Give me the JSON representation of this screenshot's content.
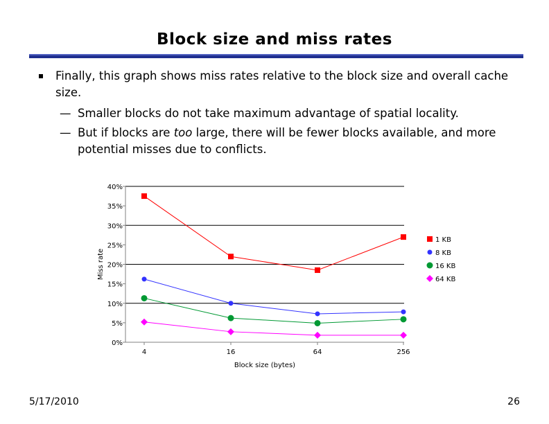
{
  "slide": {
    "title": "Block size and miss rates",
    "bullet_main": "Finally, this graph shows miss rates relative to the block size and overall cache size.",
    "sub_bullet_1": "Smaller blocks do not take maximum advantage of spatial locality.",
    "sub_bullet_2_pre": "But if blocks are ",
    "sub_bullet_2_em": "too",
    "sub_bullet_2_post": " large, there will be fewer blocks available, and more potential misses due to conflicts.",
    "dash": "—",
    "footer_date": "5/17/2010",
    "page_number": "26"
  },
  "chart_data": {
    "type": "line",
    "categories": [
      "4",
      "16",
      "64",
      "256"
    ],
    "xlabel": "Block size (bytes)",
    "ylabel": "Miss rate",
    "ylim": [
      0,
      40
    ],
    "yticks": [
      0,
      5,
      10,
      15,
      20,
      25,
      30,
      35,
      40
    ],
    "ytick_labels": [
      "0%",
      "5%",
      "10%",
      "15%",
      "20%",
      "25%",
      "30%",
      "35%",
      "40%"
    ],
    "grid": "horizontal at 0, 10, 20, 30, 40",
    "legend_position": "right",
    "series": [
      {
        "name": "1 KB",
        "values": [
          37.5,
          22,
          18.5,
          27
        ],
        "color": "#ff0000",
        "marker": "square"
      },
      {
        "name": "8 KB",
        "values": [
          16.2,
          10,
          7.3,
          7.8
        ],
        "color": "#3333ff",
        "marker": "circle-small"
      },
      {
        "name": "16 KB",
        "values": [
          11.3,
          6.2,
          4.9,
          5.9
        ],
        "color": "#009933",
        "marker": "circle"
      },
      {
        "name": "64 KB",
        "values": [
          5.2,
          2.7,
          1.8,
          1.8
        ],
        "color": "#ff00ff",
        "marker": "diamond"
      }
    ]
  }
}
